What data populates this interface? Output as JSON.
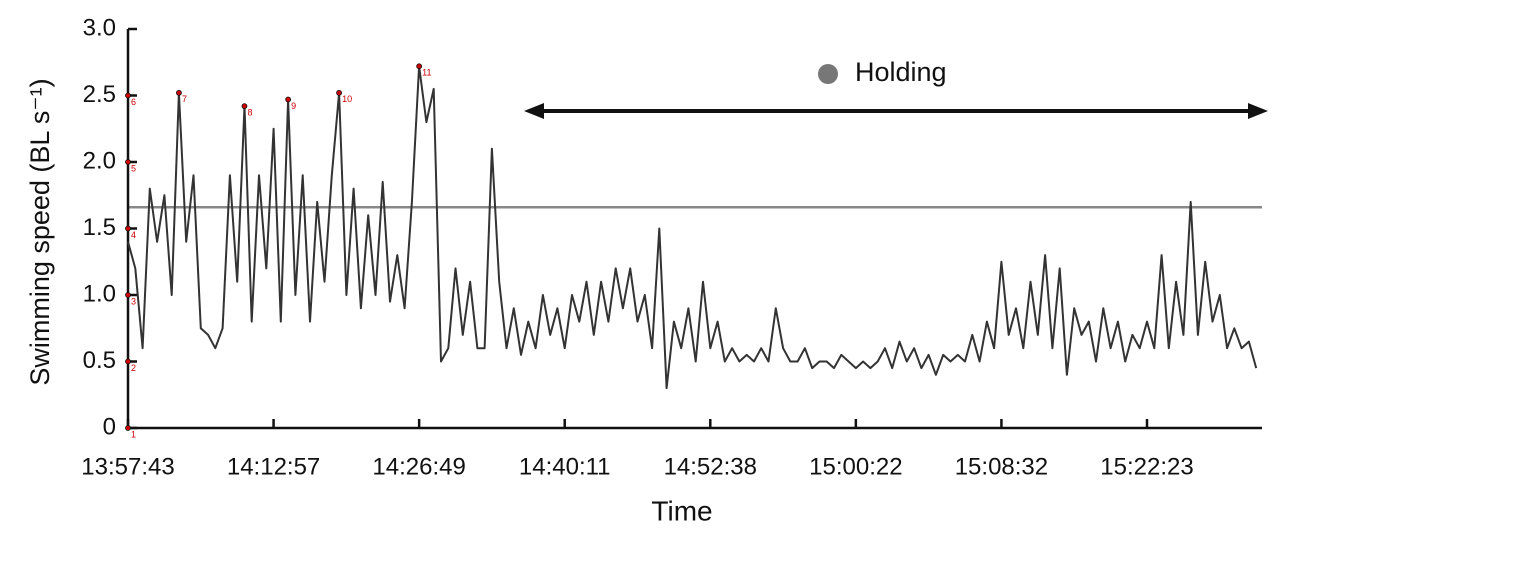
{
  "chart_data": {
    "type": "line",
    "x_label": "Time",
    "y_label": "Swimming speed (BL s⁻¹)",
    "xlim": [
      0,
      7.79
    ],
    "ylim": [
      0,
      3
    ],
    "xticks": [
      {
        "value": 0,
        "label": "13:57:43"
      },
      {
        "value": 1,
        "label": "14:12:57"
      },
      {
        "value": 2,
        "label": "14:26:49"
      },
      {
        "value": 3,
        "label": "14:40:11"
      },
      {
        "value": 4,
        "label": "14:52:38"
      },
      {
        "value": 5,
        "label": "15:00:22"
      },
      {
        "value": 6,
        "label": "15:08:32"
      },
      {
        "value": 7,
        "label": "15:22:23"
      }
    ],
    "yticks": [
      0,
      0.5,
      {
        "value": 1,
        "label": "1.0"
      },
      1.5,
      {
        "value": 2,
        "label": "2.0"
      },
      2.5,
      {
        "value": 3,
        "label": "3.0"
      }
    ],
    "x": [
      0,
      0.05,
      0.1,
      0.15,
      0.2,
      0.25,
      0.3,
      0.35,
      0.4,
      0.45,
      0.5,
      0.55,
      0.6,
      0.65,
      0.7,
      0.75,
      0.8,
      0.85,
      0.9,
      0.95,
      1,
      1.05,
      1.1,
      1.15,
      1.2,
      1.25,
      1.3,
      1.35,
      1.4,
      1.45,
      1.5,
      1.55,
      1.6,
      1.65,
      1.7,
      1.75,
      1.8,
      1.85,
      1.9,
      1.95,
      2,
      2.05,
      2.1,
      2.15,
      2.2,
      2.25,
      2.3,
      2.35,
      2.4,
      2.45,
      2.5,
      2.55,
      2.6,
      2.65,
      2.7,
      2.75,
      2.8,
      2.85,
      2.9,
      2.95,
      3,
      3.05,
      3.1,
      3.15,
      3.2,
      3.25,
      3.3,
      3.35,
      3.4,
      3.45,
      3.5,
      3.55,
      3.6,
      3.65,
      3.7,
      3.75,
      3.8,
      3.85,
      3.9,
      3.95,
      4,
      4.05,
      4.1,
      4.15,
      4.2,
      4.25,
      4.3,
      4.35,
      4.4,
      4.45,
      4.5,
      4.55,
      4.6,
      4.65,
      4.7,
      4.75,
      4.8,
      4.85,
      4.9,
      4.95,
      5,
      5.05,
      5.1,
      5.15,
      5.2,
      5.25,
      5.3,
      5.35,
      5.4,
      5.45,
      5.5,
      5.55,
      5.6,
      5.65,
      5.7,
      5.75,
      5.8,
      5.85,
      5.9,
      5.95,
      6,
      6.05,
      6.1,
      6.15,
      6.2,
      6.25,
      6.3,
      6.35,
      6.4,
      6.45,
      6.5,
      6.55,
      6.6,
      6.65,
      6.7,
      6.75,
      6.8,
      6.85,
      6.9,
      6.95,
      7,
      7.05,
      7.1,
      7.15,
      7.2,
      7.25,
      7.3,
      7.35,
      7.4,
      7.45,
      7.5,
      7.55,
      7.6,
      7.65,
      7.7,
      7.75
    ],
    "series": [
      {
        "color": "#333333",
        "values": [
          1.4,
          1.2,
          0.6,
          1.8,
          1.4,
          1.75,
          1.0,
          2.52,
          1.4,
          1.9,
          0.75,
          0.7,
          0.6,
          0.75,
          1.9,
          1.1,
          2.42,
          0.8,
          1.9,
          1.2,
          2.25,
          0.8,
          2.47,
          1.0,
          1.9,
          0.8,
          1.7,
          1.1,
          1.9,
          2.52,
          1.0,
          1.8,
          0.9,
          1.6,
          1.0,
          1.85,
          0.95,
          1.3,
          0.9,
          1.7,
          2.72,
          2.3,
          2.55,
          0.5,
          0.6,
          1.2,
          0.7,
          1.1,
          0.6,
          0.6,
          2.1,
          1.1,
          0.6,
          0.9,
          0.55,
          0.8,
          0.6,
          1.0,
          0.7,
          0.9,
          0.6,
          1.0,
          0.8,
          1.1,
          0.7,
          1.1,
          0.8,
          1.2,
          0.9,
          1.2,
          0.8,
          1.0,
          0.6,
          1.5,
          0.3,
          0.8,
          0.6,
          0.9,
          0.5,
          1.1,
          0.6,
          0.8,
          0.5,
          0.6,
          0.5,
          0.55,
          0.5,
          0.6,
          0.5,
          0.9,
          0.6,
          0.5,
          0.5,
          0.6,
          0.45,
          0.5,
          0.5,
          0.45,
          0.55,
          0.5,
          0.45,
          0.5,
          0.45,
          0.5,
          0.6,
          0.45,
          0.65,
          0.5,
          0.6,
          0.45,
          0.55,
          0.4,
          0.55,
          0.5,
          0.55,
          0.5,
          0.7,
          0.5,
          0.8,
          0.6,
          1.25,
          0.7,
          0.9,
          0.6,
          1.1,
          0.7,
          1.3,
          0.6,
          1.2,
          0.4,
          0.9,
          0.7,
          0.8,
          0.5,
          0.9,
          0.6,
          0.8,
          0.5,
          0.7,
          0.6,
          0.8,
          0.6,
          1.3,
          0.6,
          1.1,
          0.7,
          1.7,
          0.7,
          1.25,
          0.8,
          1.0,
          0.6,
          0.75,
          0.6,
          0.65,
          0.45
        ]
      }
    ],
    "hline": {
      "value": 1.66,
      "color": "#888888"
    },
    "annotations": [
      {
        "label": "1",
        "x": 0,
        "y": 0
      },
      {
        "label": "2",
        "x": 0,
        "y": 0.5
      },
      {
        "label": "3",
        "x": 0,
        "y": 1
      },
      {
        "label": "4",
        "x": 0,
        "y": 1.5
      },
      {
        "label": "5",
        "x": 0,
        "y": 2
      },
      {
        "label": "6",
        "x": 0,
        "y": 2.5
      },
      {
        "label": "7",
        "x": 0.35,
        "y": 2.52
      },
      {
        "label": "8",
        "x": 0.8,
        "y": 2.42
      },
      {
        "label": "9",
        "x": 1.1,
        "y": 2.47
      },
      {
        "label": "10",
        "x": 1.45,
        "y": 2.52
      },
      {
        "label": "11",
        "x": 2,
        "y": 2.72
      }
    ],
    "annotation_color": "#cc0000",
    "holding": {
      "label": "Holding",
      "color": "#777777"
    }
  }
}
